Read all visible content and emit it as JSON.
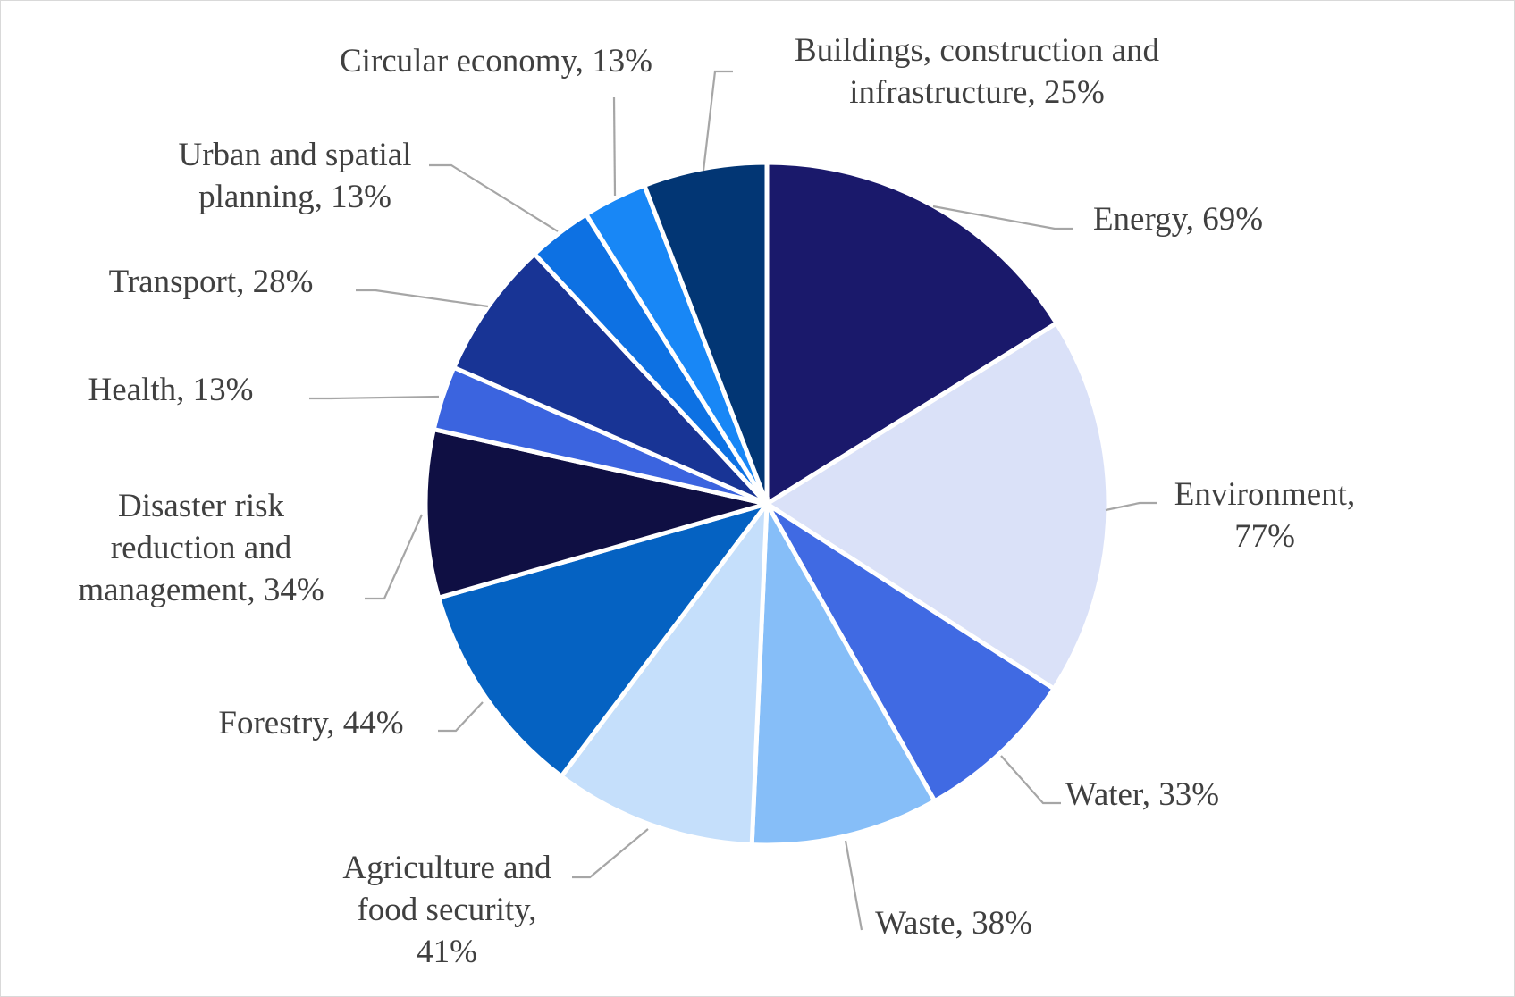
{
  "chart_data": {
    "type": "pie",
    "title": "",
    "start_angle_deg": 0,
    "direction": "clockwise",
    "legend": "none",
    "slices": [
      {
        "category": "Energy",
        "value": 69,
        "label_lines": [
          "Energy, 69%"
        ],
        "color": "#1a196b"
      },
      {
        "category": "Environment",
        "value": 77,
        "label_lines": [
          "Environment,",
          "77%"
        ],
        "color": "#dae1f8"
      },
      {
        "category": "Water",
        "value": 33,
        "label_lines": [
          "Water, 33%"
        ],
        "color": "#406ae3"
      },
      {
        "category": "Waste",
        "value": 38,
        "label_lines": [
          "Waste, 38%"
        ],
        "color": "#86bef8"
      },
      {
        "category": "Agriculture and food security",
        "value": 41,
        "label_lines": [
          "Agriculture and",
          "food security,",
          "41%"
        ],
        "color": "#c5dffb"
      },
      {
        "category": "Forestry",
        "value": 44,
        "label_lines": [
          "Forestry, 44%"
        ],
        "color": "#0562c2"
      },
      {
        "category": "Disaster risk reduction and management",
        "value": 34,
        "label_lines": [
          "Disaster risk",
          "reduction and",
          "management, 34%"
        ],
        "color": "#0f0f43"
      },
      {
        "category": "Health",
        "value": 13,
        "label_lines": [
          "Health, 13%"
        ],
        "color": "#3b64df"
      },
      {
        "category": "Transport",
        "value": 28,
        "label_lines": [
          "Transport, 28%"
        ],
        "color": "#183495"
      },
      {
        "category": "Urban and spatial planning",
        "value": 13,
        "label_lines": [
          "Urban and spatial",
          "planning, 13%"
        ],
        "color": "#0d71e3"
      },
      {
        "category": "Circular economy",
        "value": 13,
        "label_lines": [
          "Circular economy, 13%"
        ],
        "color": "#1887f6"
      },
      {
        "category": "Buildings, construction and infrastructure",
        "value": 25,
        "label_lines": [
          "Buildings, construction and",
          "infrastructure, 25%"
        ],
        "color": "#023674"
      }
    ]
  }
}
